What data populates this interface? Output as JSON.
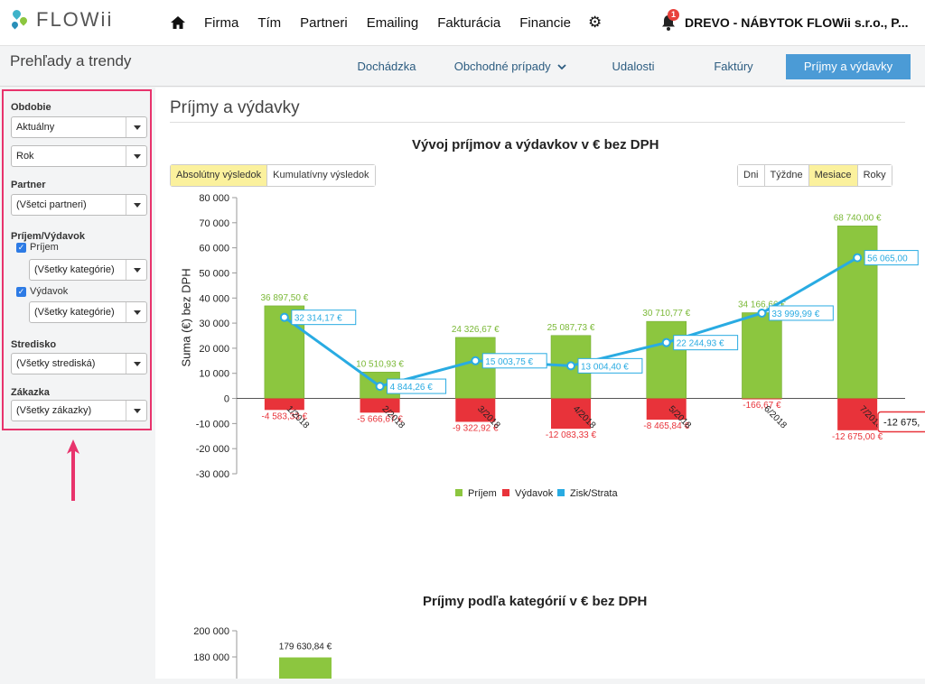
{
  "app": {
    "logo_text": "FLOWii",
    "company": "DREVO - NÁBYTOK FLOWii s.r.o., P...",
    "notifications": "1"
  },
  "nav": {
    "items": [
      "Firma",
      "Tím",
      "Partneri",
      "Emailing",
      "Fakturácia",
      "Financie"
    ]
  },
  "subheader": {
    "title": "Prehľady a trendy"
  },
  "tabs": [
    {
      "label": "Dochádzka"
    },
    {
      "label": "Obchodné prípady"
    },
    {
      "label": "Udalosti"
    },
    {
      "label": "Faktúry"
    },
    {
      "label": "Príjmy a výdavky"
    }
  ],
  "sidebar": {
    "obdobie_label": "Obdobie",
    "obdobie_value": "Aktuálny",
    "period_value": "Rok",
    "partner_label": "Partner",
    "partner_value": "(Všetci partneri)",
    "prijem_vydavok_label": "Príjem/Výdavok",
    "prijem_label": "Príjem",
    "prijem_cat": "(Všetky kategórie)",
    "vydavok_label": "Výdavok",
    "vydavok_cat": "(Všetky kategórie)",
    "stredisko_label": "Stredisko",
    "stredisko_value": "(Všetky strediská)",
    "zakazka_label": "Zákazka",
    "zakazka_value": "(Všetky zákazky)"
  },
  "main": {
    "title": "Príjmy a výdavky",
    "view_buttons": [
      "Absolútny výsledok",
      "Kumulatívny výsledok"
    ],
    "period_buttons": [
      "Dni",
      "Týždne",
      "Mesiace",
      "Roky"
    ]
  },
  "colors": {
    "income": "#8cc63f",
    "expense": "#e8333a",
    "profit": "#29abe2",
    "accent": "#4b9bd6"
  },
  "chart_data": [
    {
      "type": "bar",
      "title": "Vývoj príjmov a výdavkov v € bez DPH",
      "ylabel": "Suma (€) bez DPH",
      "ylim": [
        -30000,
        80000
      ],
      "yticks": [
        "80 000",
        "70 000",
        "60 000",
        "50 000",
        "40 000",
        "30 000",
        "20 000",
        "10 000",
        "0",
        "-10 000",
        "-20 000",
        "-30 000"
      ],
      "categories": [
        "1/2018",
        "2/2018",
        "3/2018",
        "4/2018",
        "5/2018",
        "6/2018",
        "7/2018"
      ],
      "series": [
        {
          "name": "Príjem",
          "values": [
            36897.5,
            10510.93,
            24326.67,
            25087.73,
            30710.77,
            34166.66,
            68740.0
          ],
          "labels": [
            "36 897,50 €",
            "10 510,93 €",
            "24 326,67 €",
            "25 087,73 €",
            "30 710,77 €",
            "34 166,66 €",
            "68 740,00 €"
          ]
        },
        {
          "name": "Výdavok",
          "values": [
            -4583.33,
            -5666.67,
            -9322.92,
            -12083.33,
            -8465.84,
            -166.67,
            -12675.0
          ],
          "labels": [
            "-4 583,33 €",
            "-5 666,67 €",
            "-9 322,92 €",
            "-12 083,33 €",
            "-8 465,84 €",
            "-166,67 €",
            "-12 675,00 €"
          ]
        },
        {
          "name": "Zisk/Strata",
          "values": [
            32314.17,
            4844.26,
            15003.75,
            13004.4,
            22244.93,
            33999.99,
            56065.0
          ],
          "labels": [
            "32 314,17 €",
            "4 844,26 €",
            "15 003,75 €",
            "13 004,40 €",
            "22 244,93 €",
            "33 999,99 €",
            "56 065,00"
          ]
        }
      ],
      "tooltip": "-12 675,",
      "legend": [
        "Príjem",
        "Výdavok",
        "Zisk/Strata"
      ]
    },
    {
      "type": "bar",
      "title": "Príjmy podľa kategórií v € bez DPH",
      "yticks": [
        "200 000",
        "180 000"
      ],
      "series": [
        {
          "name": "Príjem",
          "values": [
            179630.84
          ],
          "labels": [
            "179 630,84 €"
          ]
        }
      ]
    }
  ]
}
